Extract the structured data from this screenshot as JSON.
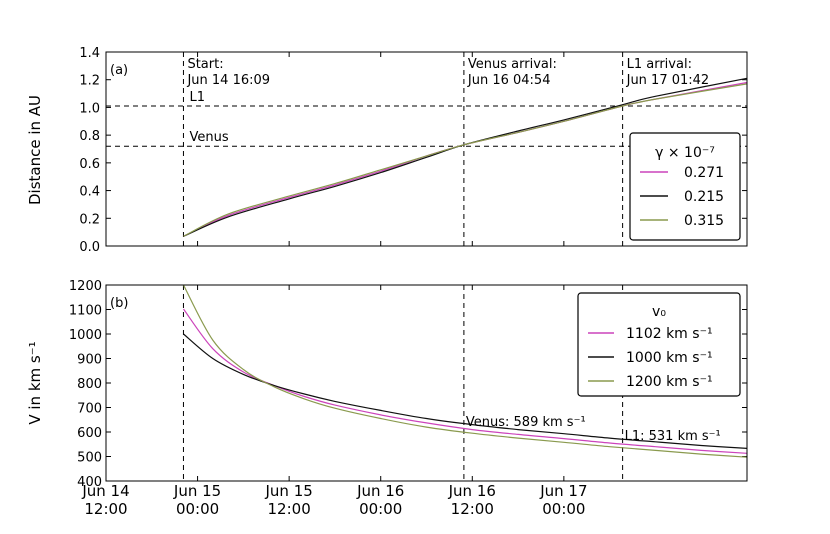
{
  "chart_data": [
    {
      "type": "line",
      "panel_label": "(a)",
      "ylabel": "Distance in AU",
      "ylim": [
        0.0,
        1.4
      ],
      "yticks": [
        "0.0",
        "0.2",
        "0.4",
        "0.6",
        "0.8",
        "1.0",
        "1.2",
        "1.4"
      ],
      "xlim": [
        "Jun 14 06:00",
        "Jun 17 18:00"
      ],
      "grid": false,
      "legend_title": "γ × 10⁻⁷",
      "legend_position": "right",
      "series": [
        {
          "name": "0.271",
          "color": "#cc44bb",
          "x": [
            "Jun 14 16:09",
            "Jun 14 22:00",
            "Jun 15 06:00",
            "Jun 15 12:00",
            "Jun 15 18:00",
            "Jun 16 00:00",
            "Jun 16 04:54",
            "Jun 16 12:00",
            "Jun 16 18:00",
            "Jun 17 01:42",
            "Jun 17 06:00",
            "Jun 17 18:00"
          ],
          "y": [
            0.07,
            0.22,
            0.35,
            0.44,
            0.54,
            0.65,
            0.73,
            0.82,
            0.9,
            1.01,
            1.06,
            1.18
          ]
        },
        {
          "name": "0.215",
          "color": "#111111",
          "x": [
            "Jun 14 16:09",
            "Jun 14 22:00",
            "Jun 15 06:00",
            "Jun 15 12:00",
            "Jun 15 18:00",
            "Jun 16 00:00",
            "Jun 16 04:54",
            "Jun 16 12:00",
            "Jun 16 18:00",
            "Jun 17 01:42",
            "Jun 17 06:00",
            "Jun 17 18:00"
          ],
          "y": [
            0.07,
            0.21,
            0.34,
            0.43,
            0.53,
            0.64,
            0.73,
            0.83,
            0.91,
            1.02,
            1.08,
            1.21
          ]
        },
        {
          "name": "0.315",
          "color": "#8a9a4e",
          "x": [
            "Jun 14 16:09",
            "Jun 14 22:00",
            "Jun 15 06:00",
            "Jun 15 12:00",
            "Jun 15 18:00",
            "Jun 16 00:00",
            "Jun 16 04:54",
            "Jun 16 12:00",
            "Jun 16 18:00",
            "Jun 17 01:42",
            "Jun 17 06:00",
            "Jun 17 18:00"
          ],
          "y": [
            0.07,
            0.23,
            0.36,
            0.45,
            0.55,
            0.65,
            0.73,
            0.82,
            0.9,
            1.01,
            1.06,
            1.17
          ]
        }
      ],
      "hlines": [
        {
          "label": "L1",
          "y": 1.01
        },
        {
          "label": "Venus",
          "y": 0.72
        }
      ],
      "vlines": [
        {
          "x": "Jun 14 16:09",
          "text_line1": "Start:",
          "text_line2": "Jun 14 16:09"
        },
        {
          "x": "Jun 16 04:54",
          "text_line1": "Venus arrival:",
          "text_line2": "Jun 16 04:54"
        },
        {
          "x": "Jun 17 01:42",
          "text_line1": "L1 arrival:",
          "text_line2": "Jun 17 01:42"
        }
      ]
    },
    {
      "type": "line",
      "panel_label": "(b)",
      "ylabel": "V in km s⁻¹",
      "ylim": [
        400,
        1200
      ],
      "yticks": [
        "400",
        "500",
        "600",
        "700",
        "800",
        "900",
        "1000",
        "1100",
        "1200"
      ],
      "xlim": [
        "Jun 14 06:00",
        "Jun 17 18:00"
      ],
      "xticks": [
        {
          "line1": "Jun 14",
          "line2": "12:00"
        },
        {
          "line1": "Jun 15",
          "line2": "00:00"
        },
        {
          "line1": "Jun 15",
          "line2": "12:00"
        },
        {
          "line1": "Jun 16",
          "line2": "00:00"
        },
        {
          "line1": "Jun 16",
          "line2": "12:00"
        },
        {
          "line1": "Jun 17",
          "line2": "00:00"
        }
      ],
      "grid": false,
      "legend_title": "v₀",
      "legend_position": "top-right",
      "series": [
        {
          "name": "1102 km s⁻¹",
          "color": "#cc44bb",
          "x": [
            "Jun 14 16:09",
            "Jun 14 20:00",
            "Jun 15 00:00",
            "Jun 15 04:00",
            "Jun 15 08:00",
            "Jun 15 12:00",
            "Jun 15 18:00",
            "Jun 16 00:00",
            "Jun 16 06:00",
            "Jun 16 12:00",
            "Jun 16 18:00",
            "Jun 17 00:00",
            "Jun 17 06:00",
            "Jun 17 12:00",
            "Jun 17 18:00"
          ],
          "y": [
            1102,
            940,
            845,
            790,
            745,
            710,
            670,
            637,
            610,
            590,
            573,
            555,
            540,
            525,
            513
          ]
        },
        {
          "name": "1000 km s⁻¹",
          "color": "#111111",
          "x": [
            "Jun 14 16:09",
            "Jun 14 20:00",
            "Jun 15 00:00",
            "Jun 15 04:00",
            "Jun 15 08:00",
            "Jun 15 12:00",
            "Jun 15 18:00",
            "Jun 16 00:00",
            "Jun 16 06:00",
            "Jun 16 12:00",
            "Jun 16 18:00",
            "Jun 17 00:00",
            "Jun 17 06:00",
            "Jun 17 12:00",
            "Jun 17 18:00"
          ],
          "y": [
            1000,
            900,
            835,
            790,
            755,
            725,
            688,
            655,
            630,
            610,
            593,
            575,
            560,
            545,
            533
          ]
        },
        {
          "name": "1200 km s⁻¹",
          "color": "#8a9a4e",
          "x": [
            "Jun 14 16:09",
            "Jun 14 20:00",
            "Jun 15 00:00",
            "Jun 15 04:00",
            "Jun 15 08:00",
            "Jun 15 12:00",
            "Jun 15 18:00",
            "Jun 16 00:00",
            "Jun 16 06:00",
            "Jun 16 12:00",
            "Jun 16 18:00",
            "Jun 17 00:00",
            "Jun 17 06:00",
            "Jun 17 12:00",
            "Jun 17 18:00"
          ],
          "y": [
            1200,
            975,
            855,
            785,
            735,
            697,
            655,
            620,
            595,
            575,
            558,
            540,
            525,
            510,
            497
          ]
        }
      ],
      "vlines": [
        {
          "x": "Jun 14 16:09"
        },
        {
          "x": "Jun 16 04:54"
        },
        {
          "x": "Jun 17 01:42"
        }
      ],
      "annotations": [
        {
          "text": "Venus:  589 km s⁻¹",
          "x": "Jun 16 04:54"
        },
        {
          "text": "L1:  531 km s⁻¹",
          "x": "Jun 17 01:42"
        }
      ]
    }
  ]
}
